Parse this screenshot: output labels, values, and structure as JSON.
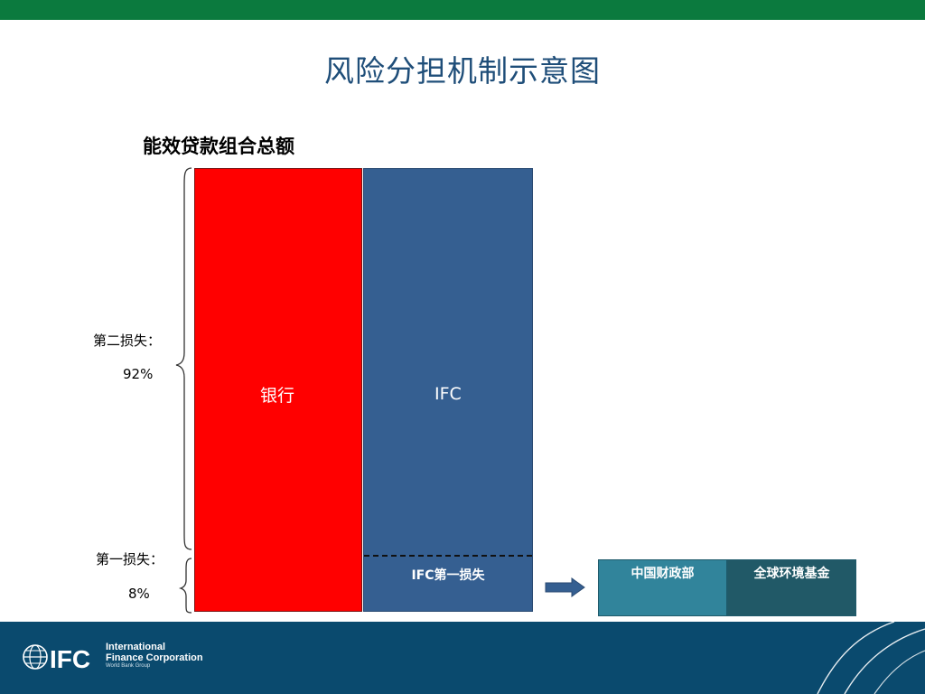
{
  "title": "风险分担机制示意图",
  "subtitle": "能效贷款组合总额",
  "second_loss": {
    "label": "第二损失：",
    "value": "92%"
  },
  "first_loss": {
    "label": "第一损失：",
    "value": "8%"
  },
  "bars": {
    "bank": "银行",
    "ifc": "IFC",
    "ifc_first_loss": "IFC第一损失"
  },
  "funders": {
    "mof": "中国财政部",
    "gef": "全球环境基金"
  },
  "logo": {
    "mark": "IFC",
    "line1": "International",
    "line2": "Finance Corporation",
    "line3": "World Bank Group"
  },
  "colors": {
    "top_bar": "#0b7a3e",
    "footer": "#0a4a6e",
    "bank": "#ff0000",
    "ifc": "#355f91",
    "mof": "#31849b",
    "gef": "#215967"
  },
  "icons": [
    "globe-icon",
    "right-arrow-icon",
    "curly-brace-icon"
  ]
}
